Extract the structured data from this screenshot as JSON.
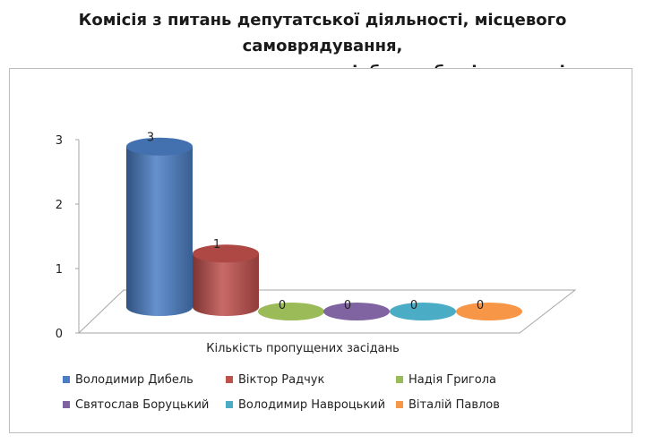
{
  "title_lines": [
    "Комісія з питань депутатської діяльності, місцевого самоврядування,",
    "захисту прав людини, законності, боротьби зі злочинністю"
  ],
  "chart_data": {
    "type": "bar",
    "style": "3d-cylinder",
    "categories": [
      "Кількість пропущених засідань"
    ],
    "xlabel": "Кількість пропущених засідань",
    "ylabel": "",
    "ylim": [
      0,
      3
    ],
    "yticks": [
      "0",
      "1",
      "2",
      "3"
    ],
    "grid": false,
    "legend_position": "bottom",
    "series": [
      {
        "name": "Володимир  Дибель",
        "values": [
          3
        ],
        "label": "3",
        "color": "#4a7ec4"
      },
      {
        "name": "Віктор Радчук",
        "values": [
          1
        ],
        "label": "1",
        "color": "#c0504d"
      },
      {
        "name": "Надія Григола",
        "values": [
          0
        ],
        "label": "0",
        "color": "#9bbb59"
      },
      {
        "name": "Святослав  Боруцький",
        "values": [
          0
        ],
        "label": "0",
        "color": "#8064a2"
      },
      {
        "name": "Володимир  Навроцький",
        "values": [
          0
        ],
        "label": "0",
        "color": "#4bacc6"
      },
      {
        "name": "Віталій Павлов",
        "values": [
          0
        ],
        "label": "0",
        "color": "#f79646"
      }
    ]
  }
}
